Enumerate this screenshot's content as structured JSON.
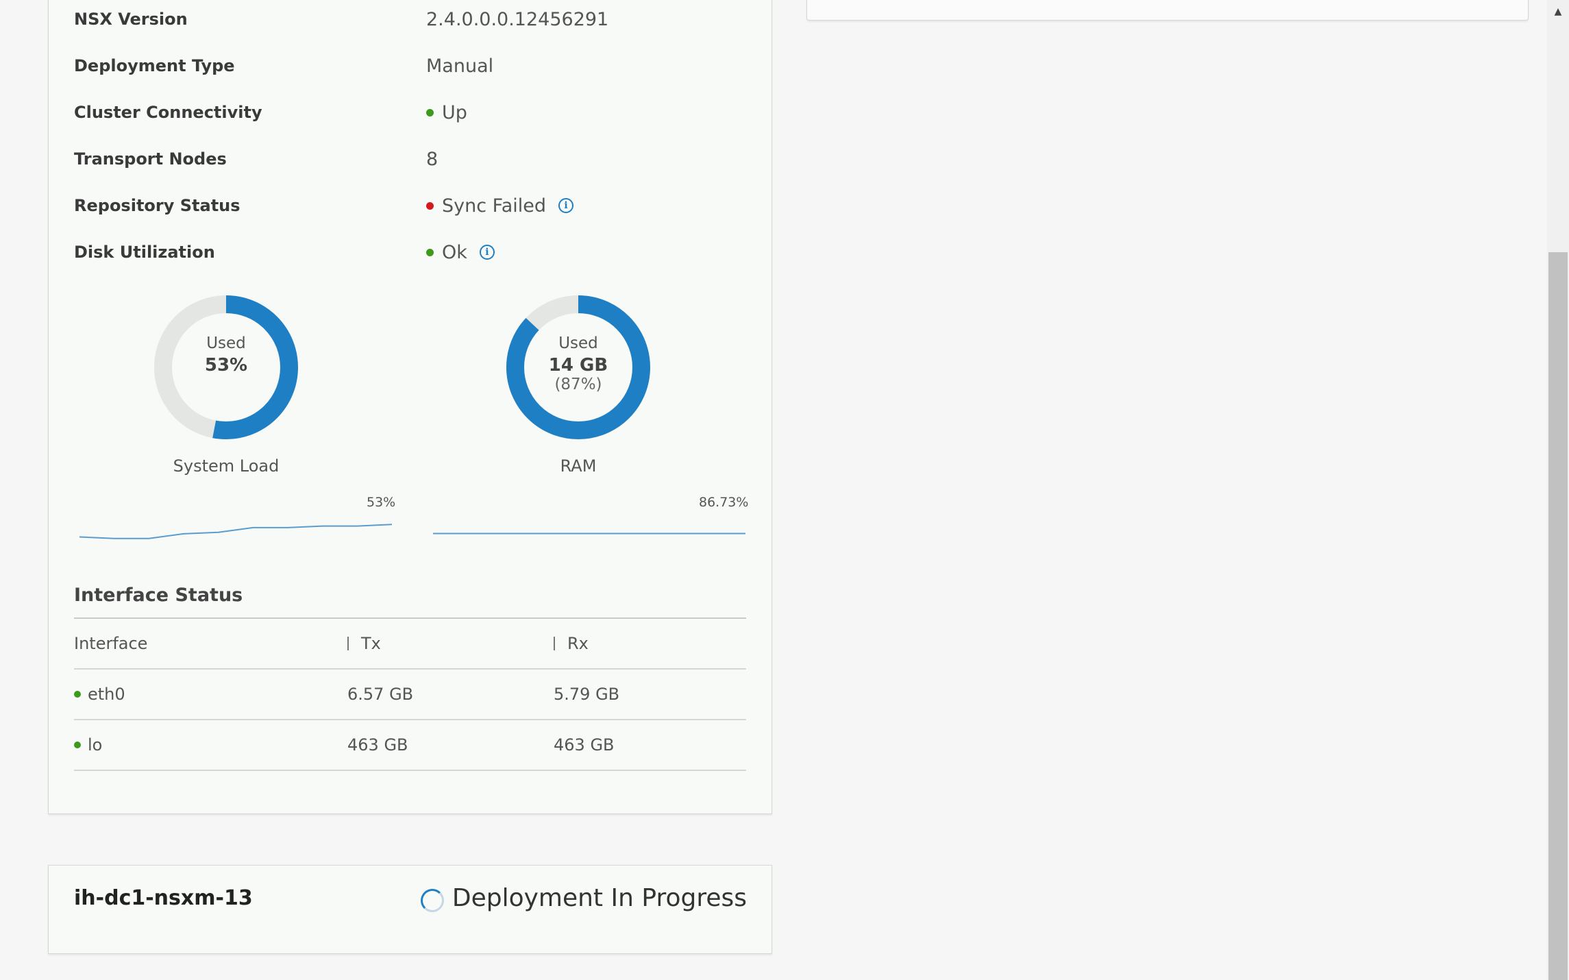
{
  "properties": [
    {
      "label": "NSX Version",
      "value": "2.4.0.0.0.12456291",
      "status": null,
      "info": false
    },
    {
      "label": "Deployment Type",
      "value": "Manual",
      "status": null,
      "info": false
    },
    {
      "label": "Cluster Connectivity",
      "value": "Up",
      "status": "green",
      "info": false
    },
    {
      "label": "Transport Nodes",
      "value": "8",
      "status": null,
      "info": false
    },
    {
      "label": "Repository Status",
      "value": "Sync Failed",
      "status": "red",
      "info": true
    },
    {
      "label": "Disk Utilization",
      "value": "Ok",
      "status": "green",
      "info": true
    }
  ],
  "gauges": {
    "system_load": {
      "used_label": "Used",
      "value": "53%",
      "caption": "System Load",
      "fraction": 0.53
    },
    "ram": {
      "used_label": "Used",
      "value": "14 GB",
      "sub": "(87%)",
      "caption": "RAM",
      "fraction": 0.87
    }
  },
  "sparklines": {
    "system_load": {
      "label": "53%",
      "values": [
        45,
        44,
        44,
        47,
        48,
        51,
        51,
        52,
        52,
        53
      ]
    },
    "ram": {
      "label": "86.73%",
      "values": [
        86.7,
        86.7,
        86.7,
        86.7,
        86.7,
        86.7
      ]
    }
  },
  "interface_status": {
    "title": "Interface Status",
    "columns": [
      "Interface",
      "Tx",
      "Rx"
    ],
    "rows": [
      {
        "interface": "eth0",
        "tx": "6.57 GB",
        "rx": "5.79 GB",
        "status": "green"
      },
      {
        "interface": "lo",
        "tx": "463 GB",
        "rx": "463 GB",
        "status": "green"
      }
    ]
  },
  "node": {
    "name": "ih-dc1-nsxm-13",
    "status": "Deployment In Progress"
  },
  "colors": {
    "accent": "#1f7fc4",
    "ok": "#3e9a1c",
    "error": "#d41a1a",
    "track": "#e3e6e3"
  }
}
